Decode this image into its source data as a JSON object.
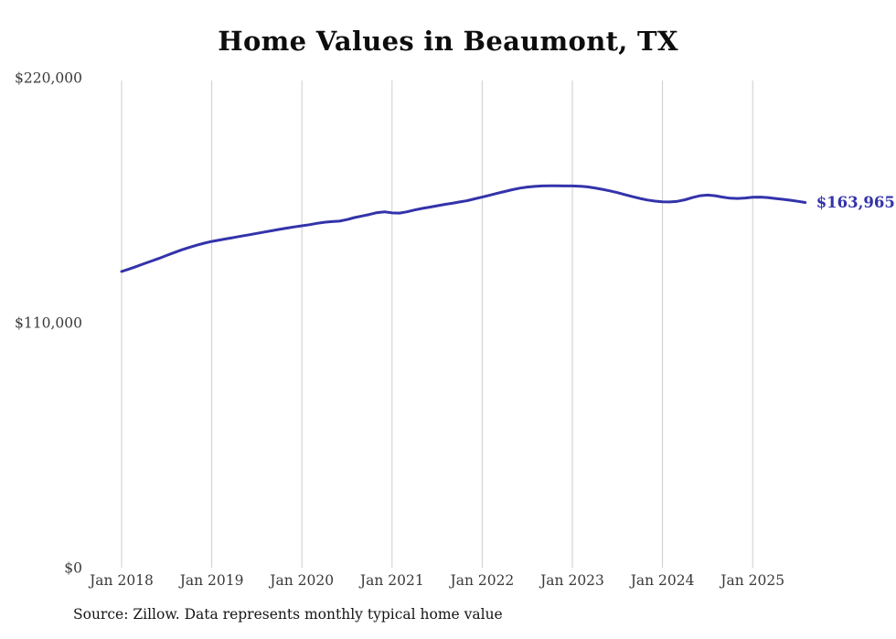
{
  "title": "Home Values in Beaumont, TX",
  "source_note": "Source: Zillow. Data represents monthly typical home value",
  "colors": {
    "line": "#3333ab",
    "grid": "#cdcdcd",
    "title": "#0d0d0d",
    "tick": "#3a3a3a",
    "end_label": "#3333ab",
    "background": "#ffffff"
  },
  "chart_data": {
    "type": "line",
    "title": "Home Values in Beaumont, TX",
    "ylabel": "",
    "xlabel": "",
    "ylim": [
      0,
      220000
    ],
    "grid": "vertical-only",
    "legend": "none",
    "end_label": "$163,965",
    "last_value": 163965,
    "y_ticks": [
      {
        "label": "$220,000",
        "value": 220000
      },
      {
        "label": "$110,000",
        "value": 110000
      },
      {
        "label": "$0",
        "value": 0
      }
    ],
    "x_ticks": [
      {
        "label": "Jan 2018",
        "month": "2018-01"
      },
      {
        "label": "Jan 2019",
        "month": "2019-01"
      },
      {
        "label": "Jan 2020",
        "month": "2020-01"
      },
      {
        "label": "Jan 2021",
        "month": "2021-01"
      },
      {
        "label": "Jan 2022",
        "month": "2022-01"
      },
      {
        "label": "Jan 2023",
        "month": "2023-01"
      },
      {
        "label": "Jan 2024",
        "month": "2024-01"
      },
      {
        "label": "Jan 2025",
        "month": "2025-01"
      }
    ],
    "x": [
      "2018-01",
      "2018-02",
      "2018-03",
      "2018-04",
      "2018-05",
      "2018-06",
      "2018-07",
      "2018-08",
      "2018-09",
      "2018-10",
      "2018-11",
      "2018-12",
      "2019-01",
      "2019-02",
      "2019-03",
      "2019-04",
      "2019-05",
      "2019-06",
      "2019-07",
      "2019-08",
      "2019-09",
      "2019-10",
      "2019-11",
      "2019-12",
      "2020-01",
      "2020-02",
      "2020-03",
      "2020-04",
      "2020-05",
      "2020-06",
      "2020-07",
      "2020-08",
      "2020-09",
      "2020-10",
      "2020-11",
      "2020-12",
      "2021-01",
      "2021-02",
      "2021-03",
      "2021-04",
      "2021-05",
      "2021-06",
      "2021-07",
      "2021-08",
      "2021-09",
      "2021-10",
      "2021-11",
      "2021-12",
      "2022-01",
      "2022-02",
      "2022-03",
      "2022-04",
      "2022-05",
      "2022-06",
      "2022-07",
      "2022-08",
      "2022-09",
      "2022-10",
      "2022-11",
      "2022-12",
      "2023-01",
      "2023-02",
      "2023-03",
      "2023-04",
      "2023-05",
      "2023-06",
      "2023-07",
      "2023-08",
      "2023-09",
      "2023-10",
      "2023-11",
      "2023-12",
      "2024-01",
      "2024-02",
      "2024-03",
      "2024-04",
      "2024-05",
      "2024-06",
      "2024-07",
      "2024-08",
      "2024-09",
      "2024-10",
      "2024-11",
      "2024-12",
      "2025-01",
      "2025-02",
      "2025-03",
      "2025-04",
      "2025-05",
      "2025-06",
      "2025-07",
      "2025-08"
    ],
    "values": [
      133000,
      134100,
      135300,
      136500,
      137700,
      138900,
      140200,
      141500,
      142700,
      143800,
      144800,
      145700,
      146500,
      147100,
      147700,
      148300,
      148900,
      149500,
      150100,
      150700,
      151300,
      151900,
      152500,
      153000,
      153500,
      154000,
      154600,
      155100,
      155400,
      155600,
      156300,
      157200,
      157900,
      158600,
      159400,
      159800,
      159300,
      159200,
      159800,
      160600,
      161300,
      161900,
      162500,
      163100,
      163600,
      164200,
      164800,
      165600,
      166400,
      167200,
      168100,
      168900,
      169700,
      170400,
      170900,
      171200,
      171400,
      171500,
      171500,
      171400,
      171400,
      171300,
      171000,
      170500,
      169900,
      169200,
      168400,
      167500,
      166600,
      165800,
      165100,
      164600,
      164300,
      164200,
      164500,
      165200,
      166200,
      167000,
      167300,
      167000,
      166400,
      165900,
      165800,
      166000,
      166300,
      166400,
      166200,
      165800,
      165400,
      165000,
      164500,
      163965
    ]
  }
}
